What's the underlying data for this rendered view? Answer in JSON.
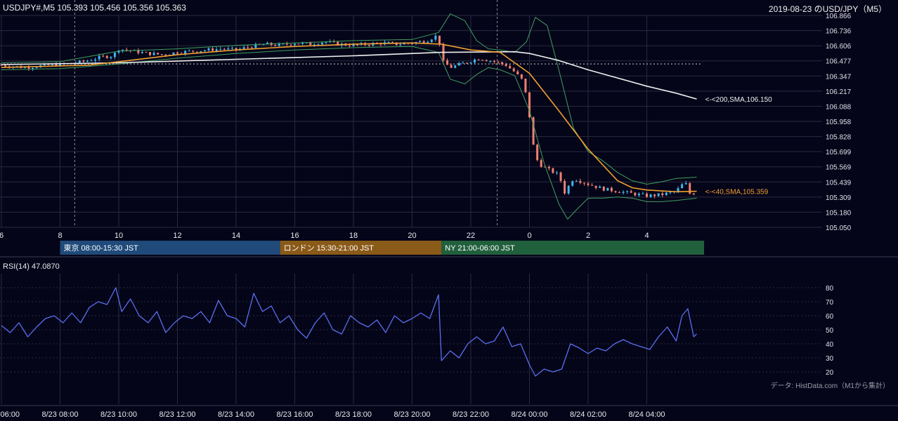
{
  "header": {
    "symbol_info": "USDJPY#,M5 105.393 105.456 105.356 105.363",
    "title": "2019-08-23 のUSD/JPY（M5）"
  },
  "colors": {
    "background": "#050519",
    "grid": "#2a2a40",
    "up_candle": "#3fb6f0",
    "down_candle": "#f08070",
    "sma40": "#f0a030",
    "sma200": "#f0f0f0",
    "bollinger": "#3fa060",
    "rsi": "#5a6ff0",
    "tokyo": "#1f4a7a",
    "london": "#8a5a18",
    "ny": "#21603c"
  },
  "chart_data": [
    {
      "type": "candlestick",
      "name": "price",
      "y_ticks": [
        "106.866",
        "106.736",
        "106.606",
        "106.477",
        "106.347",
        "106.217",
        "106.088",
        "105.958",
        "105.828",
        "105.699",
        "105.569",
        "105.439",
        "105.309",
        "105.180",
        "105.050"
      ],
      "ylim": [
        105.05,
        106.866
      ],
      "x_ticks": [
        "6",
        "8",
        "10",
        "12",
        "14",
        "16",
        "18",
        "20",
        "22",
        "0",
        "2",
        "4"
      ],
      "x_tick_hours": [
        6,
        8,
        10,
        12,
        14,
        16,
        18,
        20,
        22,
        24,
        26,
        28
      ],
      "x_range_hours": [
        6,
        29.7
      ],
      "vlines_dashed_hours": [
        8.5,
        22.9
      ],
      "hline_dotted": 106.45,
      "close_path": [
        [
          6.0,
          106.44
        ],
        [
          6.8,
          106.42
        ],
        [
          7.6,
          106.44
        ],
        [
          8.2,
          106.45
        ],
        [
          8.8,
          106.47
        ],
        [
          9.4,
          106.51
        ],
        [
          9.8,
          106.52
        ],
        [
          10.0,
          106.58
        ],
        [
          10.5,
          106.56
        ],
        [
          11.0,
          106.54
        ],
        [
          11.5,
          106.53
        ],
        [
          12.0,
          106.55
        ],
        [
          12.5,
          106.56
        ],
        [
          13.0,
          106.57
        ],
        [
          13.5,
          106.58
        ],
        [
          14.0,
          106.57
        ],
        [
          14.5,
          106.6
        ],
        [
          15.0,
          106.62
        ],
        [
          15.5,
          106.61
        ],
        [
          16.0,
          106.63
        ],
        [
          16.5,
          106.62
        ],
        [
          17.0,
          106.64
        ],
        [
          17.5,
          106.62
        ],
        [
          18.0,
          106.61
        ],
        [
          18.5,
          106.62
        ],
        [
          19.0,
          106.63
        ],
        [
          19.5,
          106.62
        ],
        [
          20.0,
          106.63
        ],
        [
          20.5,
          106.65
        ],
        [
          20.9,
          106.7
        ],
        [
          21.0,
          106.48
        ],
        [
          21.3,
          106.42
        ],
        [
          21.8,
          106.46
        ],
        [
          22.3,
          106.5
        ],
        [
          22.8,
          106.47
        ],
        [
          23.2,
          106.44
        ],
        [
          23.5,
          106.38
        ],
        [
          23.8,
          106.3
        ],
        [
          24.0,
          106.0
        ],
        [
          24.15,
          105.72
        ],
        [
          24.3,
          105.6
        ],
        [
          24.6,
          105.55
        ],
        [
          25.0,
          105.5
        ],
        [
          25.2,
          105.35
        ],
        [
          25.5,
          105.47
        ],
        [
          26.0,
          105.42
        ],
        [
          26.5,
          105.38
        ],
        [
          27.0,
          105.36
        ],
        [
          27.5,
          105.34
        ],
        [
          28.0,
          105.32
        ],
        [
          28.5,
          105.33
        ],
        [
          29.0,
          105.36
        ],
        [
          29.3,
          105.44
        ],
        [
          29.5,
          105.32
        ],
        [
          29.7,
          105.363
        ]
      ],
      "sma40_path": [
        [
          6.0,
          106.42
        ],
        [
          9.0,
          106.44
        ],
        [
          10.0,
          106.47
        ],
        [
          12.0,
          106.53
        ],
        [
          14.0,
          106.57
        ],
        [
          16.0,
          106.6
        ],
        [
          18.0,
          106.62
        ],
        [
          20.0,
          106.63
        ],
        [
          21.0,
          106.62
        ],
        [
          22.0,
          106.57
        ],
        [
          23.0,
          106.55
        ],
        [
          24.0,
          106.37
        ],
        [
          25.0,
          106.05
        ],
        [
          26.0,
          105.72
        ],
        [
          27.0,
          105.45
        ],
        [
          27.5,
          105.39
        ],
        [
          28.0,
          105.37
        ],
        [
          29.0,
          105.355
        ],
        [
          29.7,
          105.359
        ]
      ],
      "sma200_path": [
        [
          6.0,
          106.445
        ],
        [
          10.0,
          106.46
        ],
        [
          14.0,
          106.49
        ],
        [
          18.0,
          106.52
        ],
        [
          21.0,
          106.55
        ],
        [
          23.5,
          106.555
        ],
        [
          24.0,
          106.54
        ],
        [
          25.0,
          106.48
        ],
        [
          26.0,
          106.4
        ],
        [
          27.0,
          106.33
        ],
        [
          28.0,
          106.26
        ],
        [
          29.0,
          106.2
        ],
        [
          29.7,
          106.15
        ]
      ],
      "boll_upper_path": [
        [
          6.0,
          106.46
        ],
        [
          8.0,
          106.47
        ],
        [
          10.0,
          106.56
        ],
        [
          12.0,
          106.58
        ],
        [
          14.0,
          106.61
        ],
        [
          16.0,
          106.63
        ],
        [
          18.0,
          106.65
        ],
        [
          20.0,
          106.66
        ],
        [
          20.9,
          106.72
        ],
        [
          21.3,
          106.88
        ],
        [
          21.8,
          106.82
        ],
        [
          22.2,
          106.65
        ],
        [
          22.6,
          106.58
        ],
        [
          23.0,
          106.57
        ],
        [
          23.5,
          106.55
        ],
        [
          23.9,
          106.64
        ],
        [
          24.2,
          106.85
        ],
        [
          24.6,
          106.78
        ],
        [
          25.0,
          106.4
        ],
        [
          25.5,
          105.9
        ],
        [
          26.0,
          105.7
        ],
        [
          26.5,
          105.62
        ],
        [
          27.0,
          105.52
        ],
        [
          27.5,
          105.45
        ],
        [
          28.0,
          105.42
        ],
        [
          28.5,
          105.44
        ],
        [
          29.0,
          105.47
        ],
        [
          29.7,
          105.48
        ]
      ],
      "boll_lower_path": [
        [
          6.0,
          106.4
        ],
        [
          8.0,
          106.41
        ],
        [
          10.0,
          106.45
        ],
        [
          12.0,
          106.5
        ],
        [
          14.0,
          106.54
        ],
        [
          16.0,
          106.57
        ],
        [
          18.0,
          106.59
        ],
        [
          20.0,
          106.6
        ],
        [
          20.9,
          106.55
        ],
        [
          21.3,
          106.32
        ],
        [
          21.8,
          106.28
        ],
        [
          22.2,
          106.36
        ],
        [
          22.6,
          106.42
        ],
        [
          23.0,
          106.4
        ],
        [
          23.5,
          106.35
        ],
        [
          24.0,
          106.05
        ],
        [
          24.5,
          105.6
        ],
        [
          25.0,
          105.25
        ],
        [
          25.3,
          105.12
        ],
        [
          25.6,
          105.2
        ],
        [
          26.0,
          105.3
        ],
        [
          26.5,
          105.3
        ],
        [
          27.0,
          105.31
        ],
        [
          27.5,
          105.3
        ],
        [
          28.0,
          105.27
        ],
        [
          28.5,
          105.27
        ],
        [
          29.0,
          105.28
        ],
        [
          29.7,
          105.3
        ]
      ],
      "annotations": [
        {
          "label": "<-<200,SMA,106.150",
          "hour": 29.8,
          "price": 106.15,
          "color": "#f0f0f0"
        },
        {
          "label": "<-<40,SMA,105.359",
          "hour": 29.8,
          "price": 105.359,
          "color": "#f0a030"
        }
      ]
    },
    {
      "type": "line",
      "name": "RSI",
      "label": "RSI(14) 47.0870",
      "y_ticks": [
        "80",
        "70",
        "60",
        "50",
        "40",
        "30",
        "20"
      ],
      "ylim": [
        15,
        85
      ],
      "x_ticks": [
        "8/23 06:00",
        "8/23 08:00",
        "8/23 10:00",
        "8/23 12:00",
        "8/23 14:00",
        "8/23 16:00",
        "8/23 18:00",
        "8/23 20:00",
        "8/23 22:00",
        "8/24 00:00",
        "8/24 02:00",
        "8/24 04:00"
      ],
      "x_tick_hours": [
        6,
        8,
        10,
        12,
        14,
        16,
        18,
        20,
        22,
        24,
        26,
        28
      ],
      "x_range_hours": [
        6,
        29.7
      ],
      "path": [
        [
          6.0,
          53
        ],
        [
          6.3,
          48
        ],
        [
          6.6,
          55
        ],
        [
          6.9,
          45
        ],
        [
          7.2,
          52
        ],
        [
          7.5,
          58
        ],
        [
          7.8,
          60
        ],
        [
          8.1,
          55
        ],
        [
          8.4,
          62
        ],
        [
          8.7,
          55
        ],
        [
          9.0,
          66
        ],
        [
          9.3,
          70
        ],
        [
          9.6,
          68
        ],
        [
          9.9,
          80
        ],
        [
          10.1,
          63
        ],
        [
          10.4,
          72
        ],
        [
          10.7,
          60
        ],
        [
          11.0,
          55
        ],
        [
          11.3,
          63
        ],
        [
          11.6,
          48
        ],
        [
          11.9,
          55
        ],
        [
          12.2,
          60
        ],
        [
          12.5,
          58
        ],
        [
          12.8,
          63
        ],
        [
          13.1,
          55
        ],
        [
          13.4,
          71
        ],
        [
          13.7,
          60
        ],
        [
          14.0,
          58
        ],
        [
          14.3,
          52
        ],
        [
          14.6,
          76
        ],
        [
          14.9,
          63
        ],
        [
          15.2,
          67
        ],
        [
          15.5,
          55
        ],
        [
          15.8,
          60
        ],
        [
          16.1,
          50
        ],
        [
          16.4,
          44
        ],
        [
          16.7,
          55
        ],
        [
          17.0,
          62
        ],
        [
          17.3,
          50
        ],
        [
          17.6,
          47
        ],
        [
          17.9,
          60
        ],
        [
          18.2,
          55
        ],
        [
          18.5,
          52
        ],
        [
          18.8,
          57
        ],
        [
          19.1,
          48
        ],
        [
          19.4,
          60
        ],
        [
          19.7,
          55
        ],
        [
          20.0,
          58
        ],
        [
          20.3,
          62
        ],
        [
          20.6,
          58
        ],
        [
          20.9,
          75
        ],
        [
          21.0,
          28
        ],
        [
          21.3,
          35
        ],
        [
          21.6,
          30
        ],
        [
          21.9,
          40
        ],
        [
          22.2,
          45
        ],
        [
          22.5,
          40
        ],
        [
          22.8,
          42
        ],
        [
          23.1,
          52
        ],
        [
          23.4,
          38
        ],
        [
          23.7,
          40
        ],
        [
          24.0,
          25
        ],
        [
          24.2,
          17
        ],
        [
          24.5,
          22
        ],
        [
          24.8,
          20
        ],
        [
          25.1,
          22
        ],
        [
          25.4,
          40
        ],
        [
          25.7,
          37
        ],
        [
          26.0,
          33
        ],
        [
          26.3,
          37
        ],
        [
          26.6,
          35
        ],
        [
          26.9,
          40
        ],
        [
          27.2,
          43
        ],
        [
          27.5,
          40
        ],
        [
          27.8,
          38
        ],
        [
          28.1,
          36
        ],
        [
          28.4,
          45
        ],
        [
          28.7,
          52
        ],
        [
          29.0,
          42
        ],
        [
          29.2,
          60
        ],
        [
          29.4,
          65
        ],
        [
          29.6,
          45
        ],
        [
          29.7,
          47.087
        ]
      ]
    }
  ],
  "sessions": [
    {
      "label": "東京 08:00-15:30 JST",
      "start_hour": 8,
      "end_hour": 15.5,
      "color": "#1f4a7a"
    },
    {
      "label": "ロンドン 15:30-21:00 JST",
      "start_hour": 15.5,
      "end_hour": 21,
      "color": "#8a5a18"
    },
    {
      "label": "NY 21:00-06:00 JST",
      "start_hour": 21,
      "end_hour": 30,
      "color": "#21603c"
    }
  ],
  "footer": {
    "source": "データ: HistData.com（M1から集計）"
  }
}
